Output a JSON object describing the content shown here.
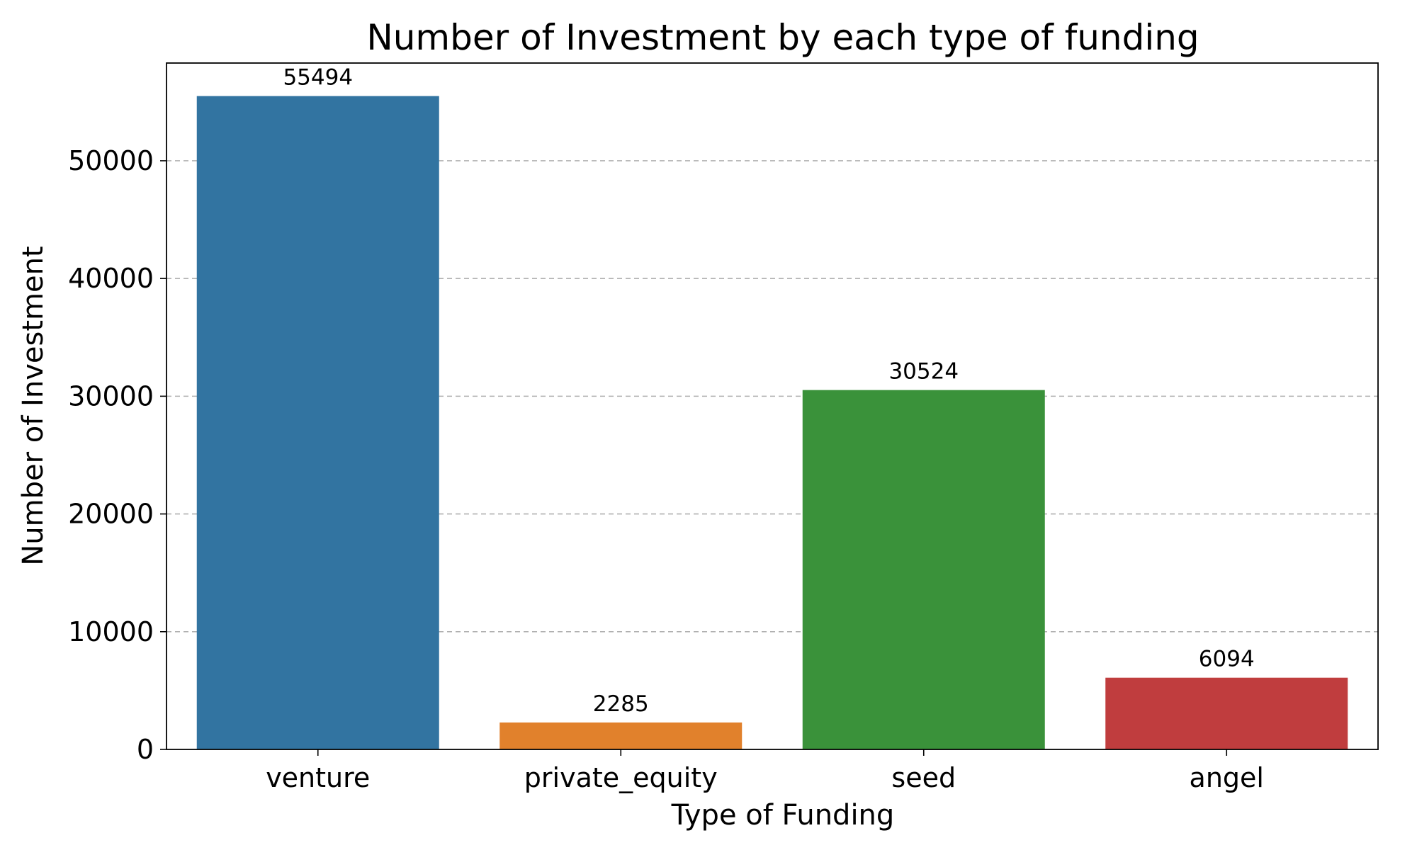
{
  "chart_data": {
    "type": "bar",
    "title": "Number of Investment by each type of funding",
    "xlabel": "Type of Funding",
    "ylabel": "Number of Investment",
    "categories": [
      "venture",
      "private_equity",
      "seed",
      "angel"
    ],
    "values": [
      55494,
      2285,
      30524,
      6094
    ],
    "data_labels": [
      "55494",
      "2285",
      "30524",
      "6094"
    ],
    "colors": [
      "#3274a1",
      "#e1812c",
      "#3a923a",
      "#c03d3e"
    ],
    "ylim": [
      0,
      58300
    ],
    "yticks": [
      0,
      10000,
      20000,
      30000,
      40000,
      50000
    ],
    "ytick_labels": [
      "0",
      "10000",
      "20000",
      "30000",
      "40000",
      "50000"
    ],
    "grid": "horizontal-dashed",
    "legend": "none"
  }
}
